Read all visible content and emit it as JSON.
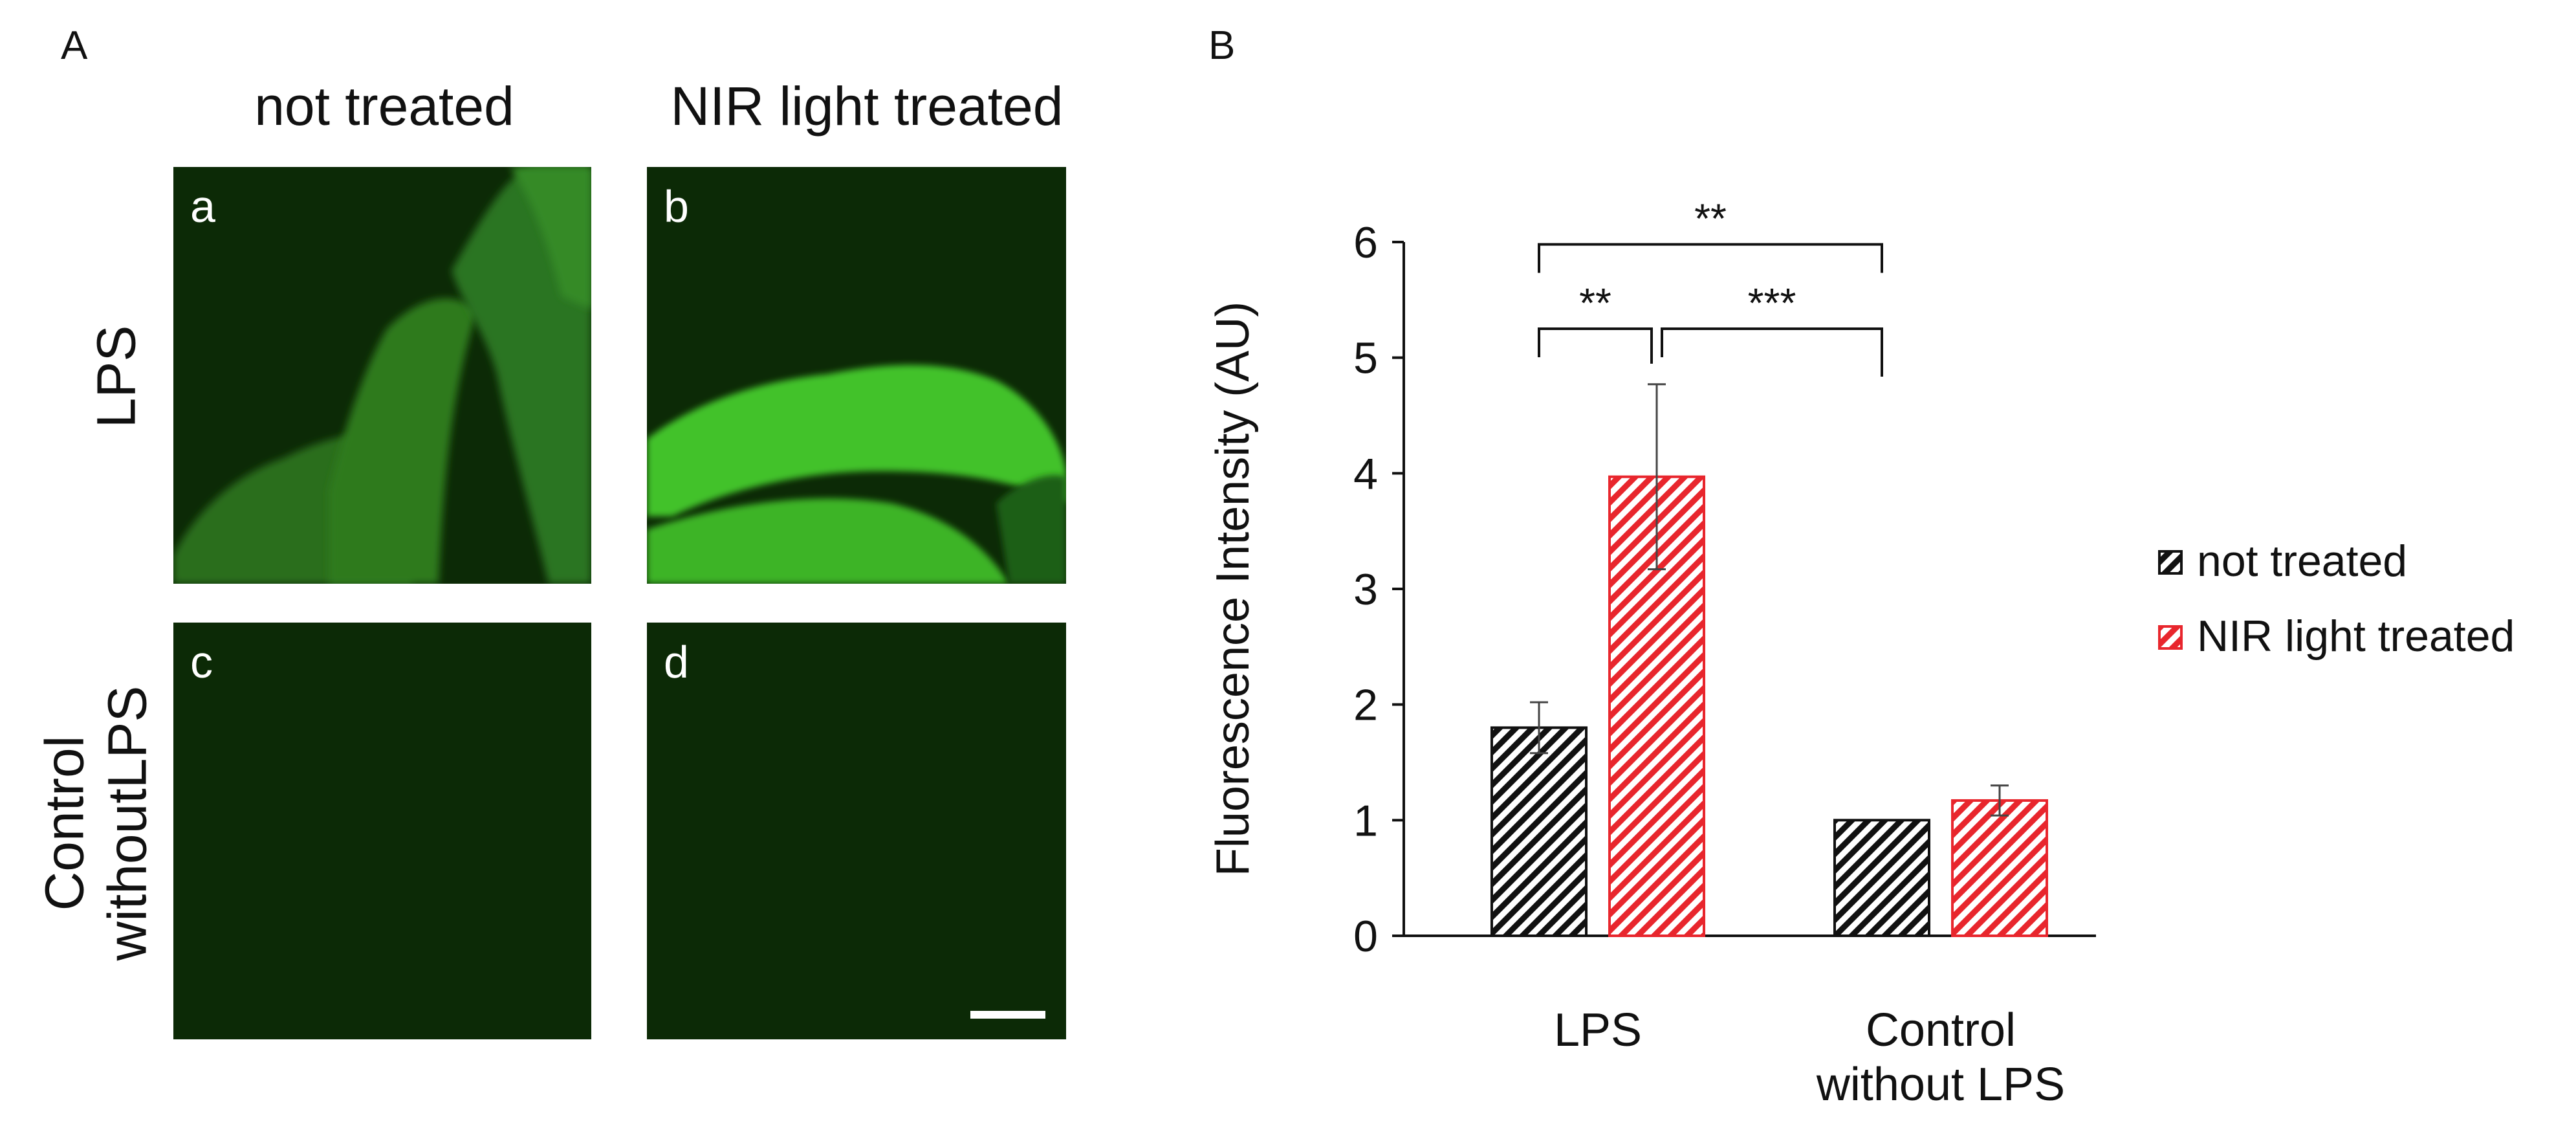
{
  "panel_a": {
    "letter": "A",
    "columns": [
      "not treated",
      "NIR light treated"
    ],
    "rows": [
      "LPS",
      "Control withoutLPS"
    ],
    "row_lines": [
      [
        "LPS"
      ],
      [
        "Control",
        "withoutLPS"
      ]
    ],
    "images": [
      {
        "label": "a",
        "intensity": "moderate",
        "color": "#2f7d20"
      },
      {
        "label": "b",
        "intensity": "high",
        "color": "#3fbf2a"
      },
      {
        "label": "c",
        "intensity": "background",
        "color": "#0c2a06"
      },
      {
        "label": "d",
        "intensity": "background",
        "color": "#0c2a06"
      }
    ]
  },
  "panel_b": {
    "letter": "B"
  },
  "chart_data": {
    "type": "bar",
    "categories": [
      "LPS",
      "Control without LPS"
    ],
    "category_lines": [
      [
        "LPS"
      ],
      [
        "Control",
        "without LPS"
      ]
    ],
    "series": [
      {
        "name": "not treated",
        "color": "#111111",
        "pattern": "hatch",
        "values": [
          1.8,
          1.0
        ],
        "errors": [
          0.22,
          0.0
        ]
      },
      {
        "name": "NIR light treated",
        "color": "#e8262d",
        "pattern": "hatch",
        "values": [
          3.97,
          1.17
        ],
        "errors": [
          0.8,
          0.13
        ]
      }
    ],
    "ylabel": "Fluorescence Intensity (AU)",
    "ylim": [
      0,
      6
    ],
    "yticks": [
      0,
      1,
      2,
      3,
      4,
      5,
      6
    ],
    "grid": false,
    "legend_position": "right",
    "significance": [
      {
        "label": "**",
        "from": [
          0,
          0
        ],
        "to": [
          0,
          1
        ]
      },
      {
        "label": "***",
        "from": [
          0,
          1
        ],
        "to": [
          1,
          0
        ]
      },
      {
        "label": "**",
        "from": [
          0,
          0
        ],
        "to": [
          1,
          0
        ]
      }
    ]
  }
}
